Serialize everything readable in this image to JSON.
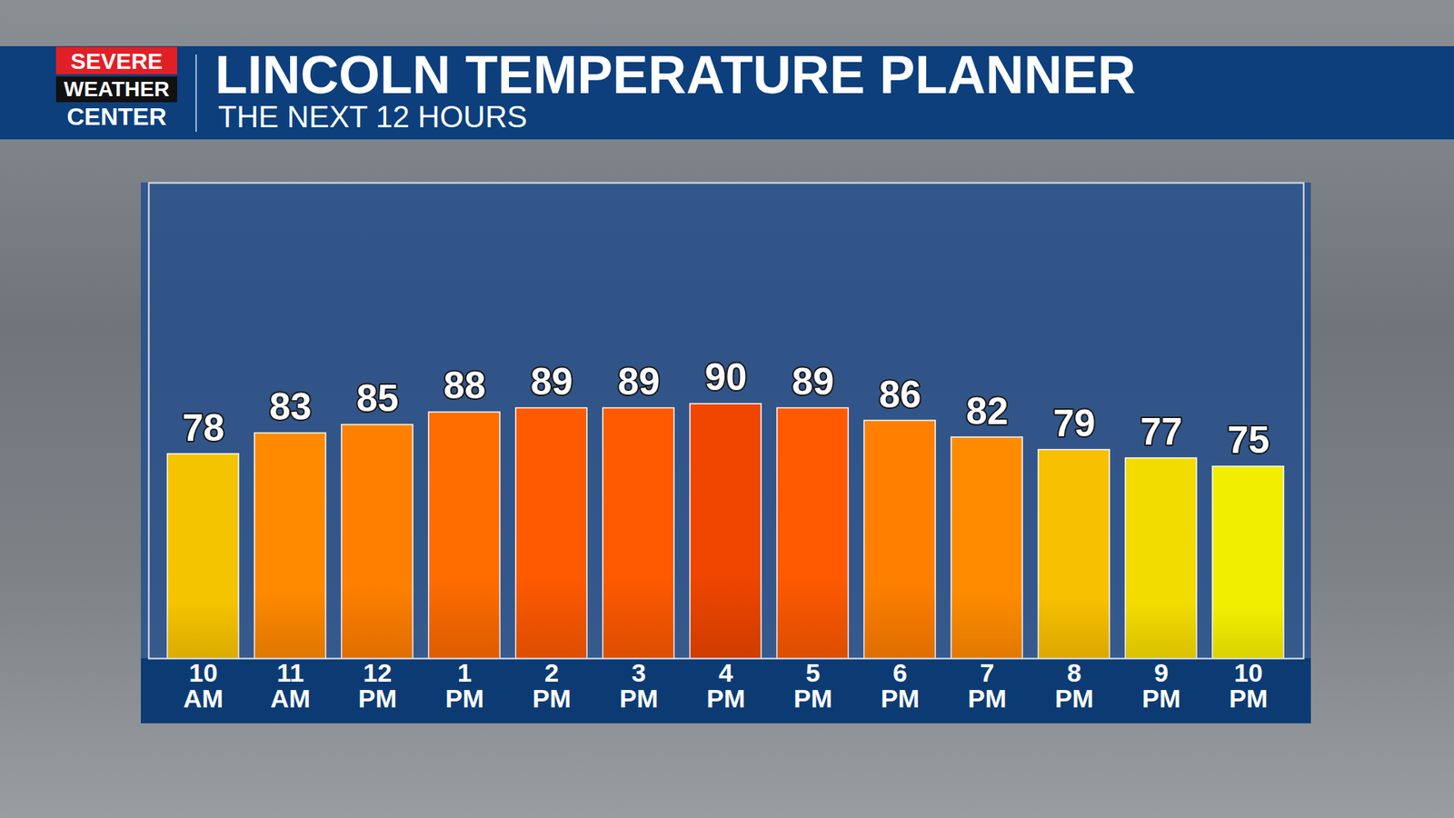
{
  "chart_data": {
    "type": "bar",
    "title": "LINCOLN TEMPERATURE PLANNER",
    "subtitle": "THE NEXT 12 HOURS",
    "branding": [
      "SEVERE",
      "WEATHER",
      "CENTER"
    ],
    "categories": [
      "10 AM",
      "11 AM",
      "12 PM",
      "1 PM",
      "2 PM",
      "3 PM",
      "4 PM",
      "5 PM",
      "6 PM",
      "7 PM",
      "8 PM",
      "9 PM",
      "10 PM"
    ],
    "values": [
      78,
      83,
      85,
      88,
      89,
      89,
      90,
      89,
      86,
      82,
      79,
      77,
      75
    ],
    "colors": [
      "#f5c400",
      "#ff8a00",
      "#ff8000",
      "#ff6c00",
      "#ff5a00",
      "#ff5a00",
      "#f04600",
      "#ff5a00",
      "#ff8000",
      "#ff8c00",
      "#f7c000",
      "#f2dc00",
      "#f2ee00"
    ],
    "ylim": [
      29,
      143
    ],
    "data_labels": true,
    "tick_labels": "x",
    "grid": false
  }
}
